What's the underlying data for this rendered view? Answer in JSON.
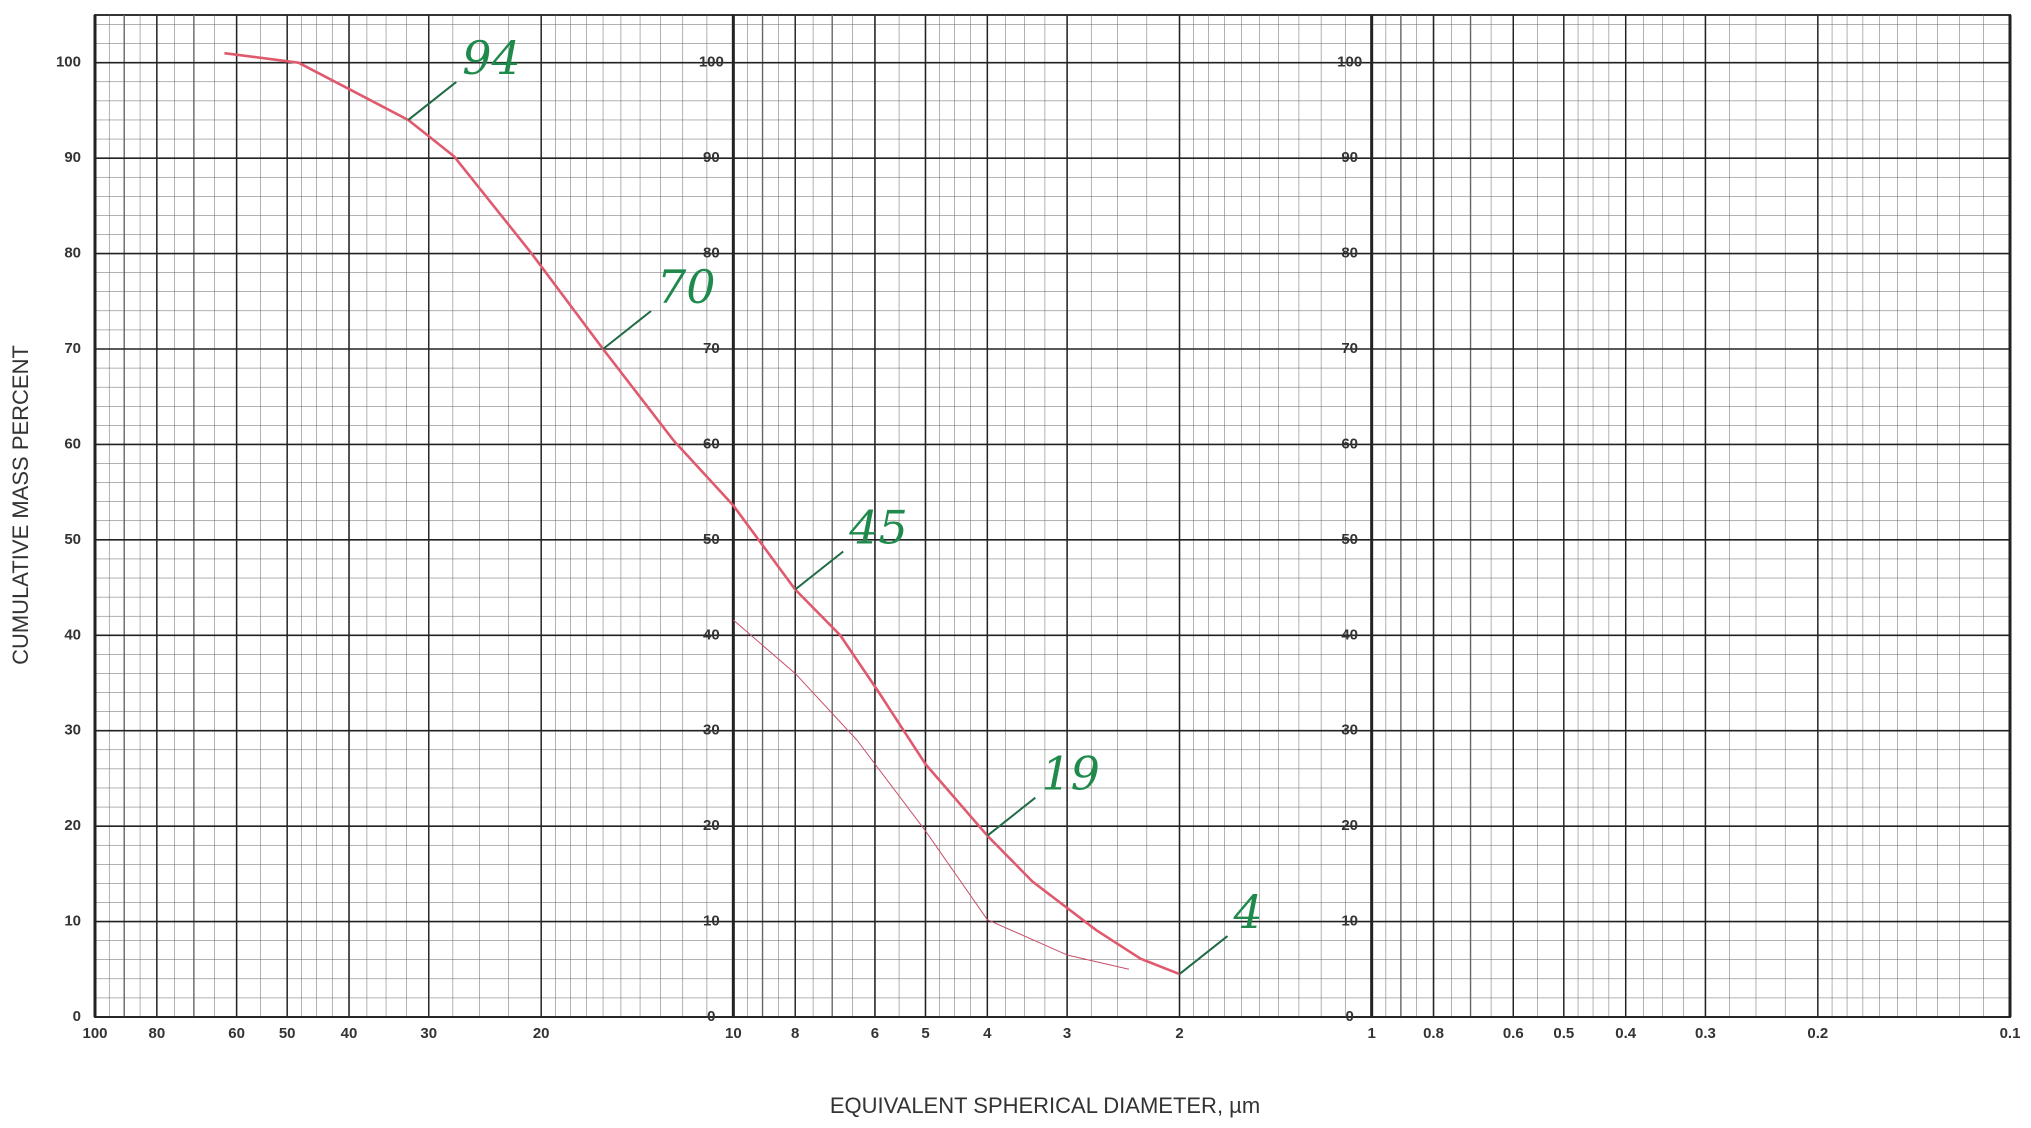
{
  "chart_data": {
    "type": "line",
    "xlabel": "EQUIVALENT SPHERICAL DIAMETER, µm",
    "ylabel": "CUMULATIVE MASS PERCENT",
    "xscale": "log",
    "xlim": [
      100,
      0.1
    ],
    "ylim": [
      0,
      105
    ],
    "xticks": [
      100,
      80,
      60,
      50,
      40,
      30,
      20,
      10,
      8,
      6,
      5,
      4,
      3,
      2,
      1,
      0.8,
      0.6,
      0.5,
      0.4,
      0.3,
      0.2,
      0.1
    ],
    "yticks": [
      0,
      10,
      20,
      30,
      40,
      50,
      60,
      70,
      80,
      90,
      100
    ],
    "grid": true,
    "series": [
      {
        "color": "#e05a6e",
        "width": 2.6,
        "x": [
          62.7,
          48,
          32.3,
          27.4,
          20.7,
          16.0,
          12.4,
          10,
          8.0,
          6.8,
          5.9,
          5.0,
          4.0,
          3.4,
          2.7,
          2.3,
          2.0
        ],
        "values": [
          101,
          100,
          94,
          90.2,
          80,
          70,
          60.4,
          53.6,
          44.8,
          40,
          33.9,
          26.5,
          19,
          14.2,
          9.1,
          6.1,
          4.5
        ]
      },
      {
        "color": "#c8506a",
        "width": 1,
        "x": [
          10,
          8,
          6.4,
          5,
          4,
          3,
          2.4
        ],
        "values": [
          41.6,
          36,
          29,
          19.5,
          10.2,
          6.5,
          5
        ]
      }
    ],
    "annotations": [
      {
        "text": "94",
        "x": 32.3,
        "y": 94
      },
      {
        "text": "70",
        "x": 16.0,
        "y": 70
      },
      {
        "text": "45",
        "x": 8.0,
        "y": 44.8
      },
      {
        "text": "19",
        "x": 4.0,
        "y": 19
      },
      {
        "text": "4",
        "x": 2.0,
        "y": 4.5
      }
    ]
  }
}
